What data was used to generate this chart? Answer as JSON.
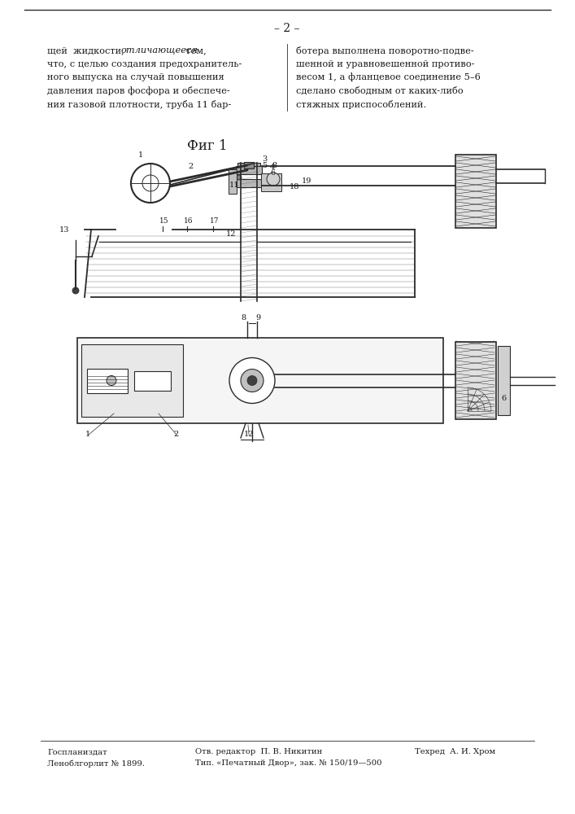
{
  "page_number": "– 2 –",
  "text_left_line1": "щей  жидкости,  ",
  "text_left_italic": "отличающееся",
  "text_left_line1b": "  тем,",
  "text_left_lines": [
    "что, с целью создания предохранитель-",
    "ного выпуска на случай повышения",
    "давления паров фосфора и обеспече-",
    "ния газовой плотности, труба 11 бар-"
  ],
  "text_right_lines": [
    "ботера выполнена поворотно-подве-",
    "шенной и уравновешенной противо-",
    "весом 1, а фланцевое соединение 5–6",
    "сделано свободным от каких-либо",
    "стяжных приспособлений."
  ],
  "fig1_label": "Фиг 1",
  "footer_left1": "Госпланиздат",
  "footer_left2": "Леноблгорлит № 1899.",
  "footer_mid1": "Отв. редактор  П. В. Никитин",
  "footer_mid2": "Тип. «Печатный Двор», зак. № 150/19—500",
  "footer_right1": "Техред  А. И. Хром",
  "bg_color": "#ffffff",
  "text_color": "#1a1a1a",
  "line_color": "#2a2a2a"
}
